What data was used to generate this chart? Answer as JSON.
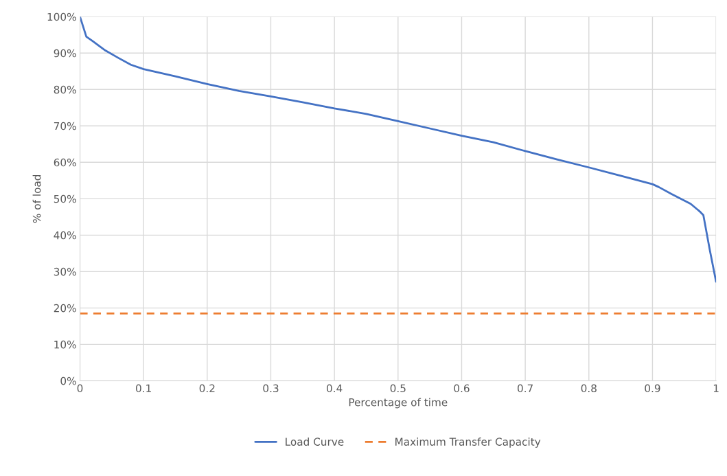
{
  "chart_data": {
    "type": "line",
    "xlabel": "Percentage of time",
    "ylabel": "% of load",
    "xlim": [
      0,
      1
    ],
    "xticks": [
      0,
      0.1,
      0.2,
      0.3,
      0.4,
      0.5,
      0.6,
      0.7,
      0.8,
      0.9,
      1
    ],
    "ylim": [
      0,
      100
    ],
    "yticks": [
      {
        "value": 0,
        "label": "0%"
      },
      {
        "value": 10,
        "label": "10%"
      },
      {
        "value": 20,
        "label": "20%"
      },
      {
        "value": 30,
        "label": "30%"
      },
      {
        "value": 40,
        "label": "40%"
      },
      {
        "value": 50,
        "label": "50%"
      },
      {
        "value": 60,
        "label": "60%"
      },
      {
        "value": 70,
        "label": "70%"
      },
      {
        "value": 80,
        "label": "80%"
      },
      {
        "value": 90,
        "label": "90%"
      },
      {
        "value": 100,
        "label": "100%"
      }
    ],
    "grid": true,
    "legend": "bottom",
    "marker": "none",
    "series": [
      {
        "name": "Load Curve",
        "color": "#4472c4",
        "line_style": "solid",
        "x": [
          0,
          0.01,
          0.02,
          0.04,
          0.06,
          0.08,
          0.1,
          0.15,
          0.2,
          0.25,
          0.3,
          0.35,
          0.4,
          0.45,
          0.5,
          0.55,
          0.6,
          0.65,
          0.7,
          0.75,
          0.8,
          0.85,
          0.9,
          0.91,
          0.93,
          0.96,
          0.975,
          0.98,
          0.99,
          1
        ],
        "values": [
          100,
          94.5,
          93.3,
          90.7,
          88.7,
          86.8,
          85.6,
          83.6,
          81.5,
          79.6,
          78.1,
          76.5,
          74.8,
          73.3,
          71.3,
          69.3,
          67.3,
          65.5,
          63.1,
          60.8,
          58.6,
          56.3,
          54.0,
          53.2,
          51.3,
          48.6,
          46.4,
          45.5,
          36.0,
          27.2
        ]
      },
      {
        "name": "Maximum Transfer Capacity",
        "color": "#ed7d31",
        "line_style": "dashed",
        "x": [
          0,
          1
        ],
        "values": [
          18.5,
          18.5
        ]
      }
    ]
  }
}
